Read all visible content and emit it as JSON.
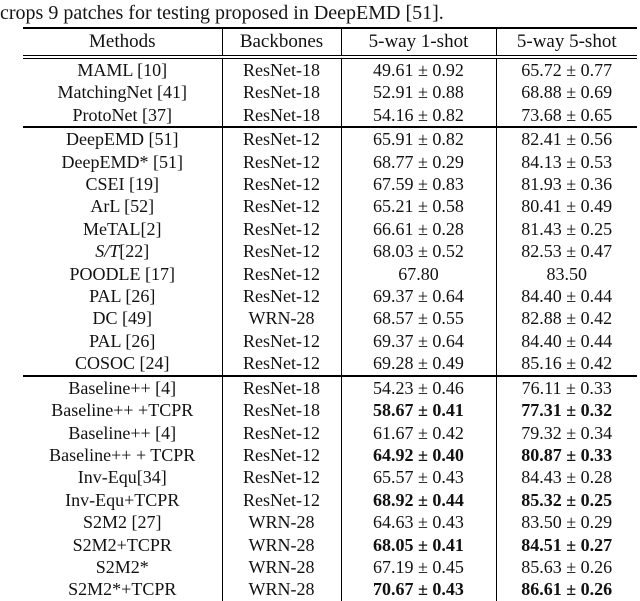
{
  "caption": "crops 9 patches for testing proposed in DeepEMD [51].",
  "table": {
    "headers": [
      "Methods",
      "Backbones",
      "5-way 1-shot",
      "5-way 5-shot"
    ],
    "sections": [
      {
        "rows": [
          {
            "method": "MAML [10]",
            "backbone": "ResNet-18",
            "one_shot": "49.61 ± 0.92",
            "five_shot": "65.72 ± 0.77"
          },
          {
            "method": "MatchingNet [41]",
            "backbone": "ResNet-18",
            "one_shot": "52.91 ± 0.88",
            "five_shot": "68.88 ± 0.69"
          },
          {
            "method": "ProtoNet [37]",
            "backbone": "ResNet-18",
            "one_shot": "54.16 ± 0.82",
            "five_shot": "73.68 ± 0.65"
          }
        ]
      },
      {
        "rows": [
          {
            "method": "DeepEMD [51]",
            "backbone": "ResNet-12",
            "one_shot": "65.91 ± 0.82",
            "five_shot": "82.41 ± 0.56"
          },
          {
            "method": "DeepEMD* [51]",
            "backbone": "ResNet-12",
            "one_shot": "68.77 ± 0.29",
            "five_shot": "84.13 ± 0.53"
          },
          {
            "method": "CSEI [19]",
            "backbone": "ResNet-12",
            "one_shot": "67.59 ± 0.83",
            "five_shot": "81.93 ± 0.36"
          },
          {
            "method": "ArL [52]",
            "backbone": "ResNet-12",
            "one_shot": "65.21 ± 0.58",
            "five_shot": "80.41 ± 0.49"
          },
          {
            "method": "MeTAL[2]",
            "backbone": "ResNet-12",
            "one_shot": "66.61 ± 0.28",
            "five_shot": "81.43 ± 0.25"
          },
          {
            "method": "S/T[22]",
            "script": true,
            "backbone": "ResNet-12",
            "one_shot": "68.03 ± 0.52",
            "five_shot": "82.53 ± 0.47"
          },
          {
            "method": "POODLE [17]",
            "backbone": "ResNet-12",
            "one_shot": "67.80",
            "five_shot": "83.50"
          },
          {
            "method": "PAL [26]",
            "backbone": "ResNet-12",
            "one_shot": "69.37 ± 0.64",
            "five_shot": "84.40 ± 0.44"
          },
          {
            "method": "DC [49]",
            "backbone": "WRN-28",
            "one_shot": "68.57 ± 0.55",
            "five_shot": "82.88 ± 0.42"
          },
          {
            "method": "PAL [26]",
            "backbone": "ResNet-12",
            "one_shot": "69.37 ± 0.64",
            "five_shot": "84.40 ± 0.44"
          },
          {
            "method": "COSOC [24]",
            "backbone": "ResNet-12",
            "one_shot": "69.28 ± 0.49",
            "five_shot": "85.16 ± 0.42"
          }
        ]
      },
      {
        "rows": [
          {
            "method": "Baseline++ [4]",
            "backbone": "ResNet-18",
            "one_shot": "54.23 ± 0.46",
            "five_shot": "76.11 ± 0.33"
          },
          {
            "method": "Baseline++ +TCPR",
            "backbone": "ResNet-18",
            "one_shot": "58.67 ± 0.41",
            "five_shot": "77.31 ± 0.32",
            "bold": true
          },
          {
            "method": "Baseline++ [4]",
            "backbone": "ResNet-12",
            "one_shot": "61.67 ± 0.42",
            "five_shot": "79.32 ± 0.34"
          },
          {
            "method": "Baseline++ + TCPR",
            "backbone": "ResNet-12",
            "one_shot": "64.92 ± 0.40",
            "five_shot": "80.87 ± 0.33",
            "bold": true
          },
          {
            "method": "Inv-Equ[34]",
            "backbone": "ResNet-12",
            "one_shot": "65.57 ± 0.43",
            "five_shot": "84.43 ± 0.28"
          },
          {
            "method": "Inv-Equ+TCPR",
            "backbone": "ResNet-12",
            "one_shot": "68.92 ± 0.44",
            "five_shot": "85.32 ± 0.25",
            "bold": true
          },
          {
            "method": "S2M2 [27]",
            "backbone": "WRN-28",
            "one_shot": "64.63 ± 0.43",
            "five_shot": "83.50 ± 0.29"
          },
          {
            "method": "S2M2+TCPR",
            "backbone": "WRN-28",
            "one_shot": "68.05 ± 0.41",
            "five_shot": "84.51 ± 0.27",
            "bold": true
          },
          {
            "method": "S2M2*",
            "backbone": "WRN-28",
            "one_shot": "67.19 ± 0.45",
            "five_shot": "85.63 ± 0.26"
          },
          {
            "method": "S2M2*+TCPR",
            "backbone": "WRN-28",
            "one_shot": "70.67 ± 0.43",
            "five_shot": "86.61 ± 0.26",
            "bold": true
          }
        ]
      }
    ]
  }
}
